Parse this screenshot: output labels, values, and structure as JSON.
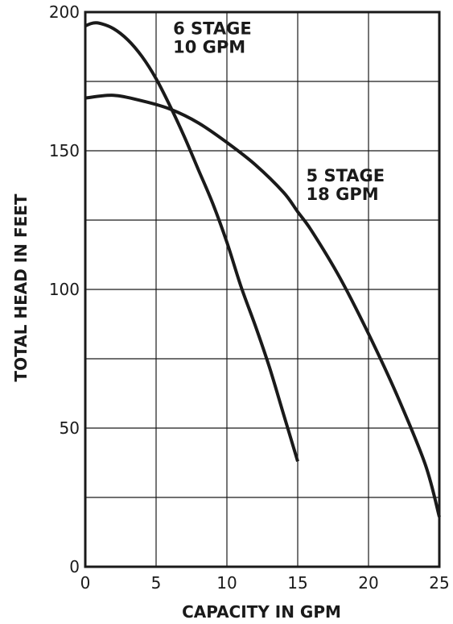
{
  "chart_data": {
    "type": "line",
    "title": "",
    "xlabel": "CAPACITY IN GPM",
    "ylabel": "TOTAL HEAD IN FEET",
    "xlim": [
      0,
      25
    ],
    "ylim": [
      0,
      200
    ],
    "xticks": [
      0,
      5,
      10,
      15,
      20,
      25
    ],
    "yticks": [
      0,
      50,
      100,
      150,
      200
    ],
    "x_grid_step": 5,
    "y_grid_step": 25,
    "grid": true,
    "series": [
      {
        "x": [
          0,
          0.5,
          1,
          2,
          3,
          4,
          5,
          6,
          7,
          8,
          9,
          10,
          11,
          12,
          13,
          14,
          15
        ],
        "values": [
          195,
          196,
          196,
          194,
          190,
          184,
          176,
          166,
          155,
          143,
          131,
          117,
          101,
          87,
          72,
          55,
          38
        ],
        "color": "#1a1a1a"
      },
      {
        "x": [
          0,
          2,
          4,
          6,
          8,
          10,
          12,
          14,
          15,
          16,
          18,
          20,
          22,
          24,
          25
        ],
        "values": [
          169,
          170,
          168,
          165,
          160,
          153,
          145,
          135,
          128,
          121,
          104,
          84,
          62,
          37,
          18
        ],
        "color": "#1a1a1a"
      }
    ],
    "annotations": [
      {
        "lines": [
          "6 STAGE",
          "10 GPM"
        ],
        "x": 6.2,
        "y": 192
      },
      {
        "lines": [
          "5 STAGE",
          "18 GPM"
        ],
        "x": 15.6,
        "y": 139
      }
    ]
  }
}
